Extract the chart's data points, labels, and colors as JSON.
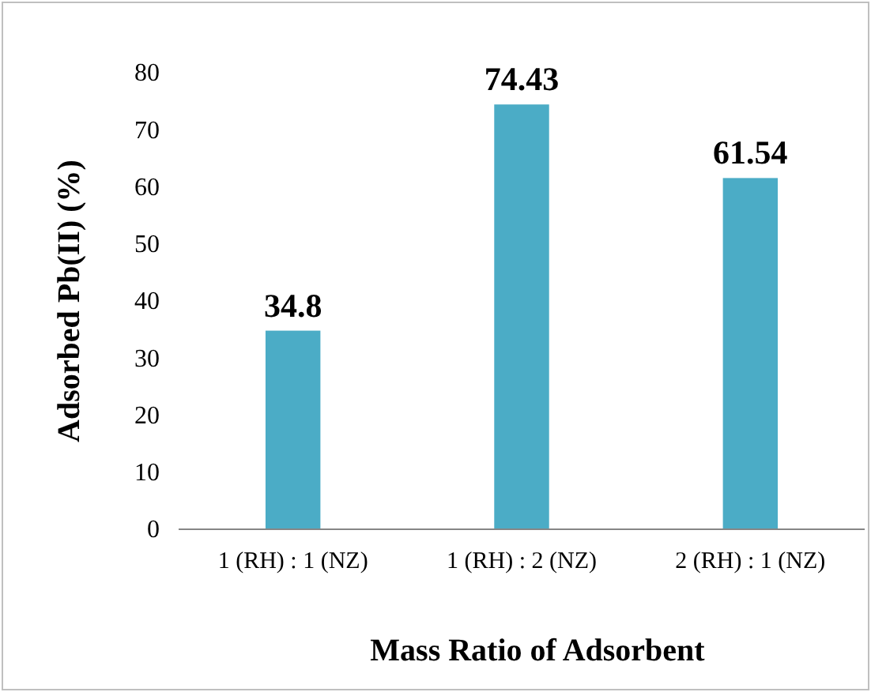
{
  "chart_data": {
    "type": "bar",
    "xlabel": "Mass Ratio of Adsorbent",
    "ylabel": "Adsorbed Pb(II) (%)",
    "categories": [
      "1 (RH) : 1 (NZ)",
      "1 (RH) : 2 (NZ)",
      "2 (RH) : 1 (NZ)"
    ],
    "values": [
      34.8,
      74.43,
      61.54
    ],
    "color": "#4bacc6",
    "ylim": [
      0,
      80
    ],
    "yticks": [
      0,
      10,
      20,
      30,
      40,
      50,
      60,
      70,
      80
    ],
    "data_labels": true,
    "grid": false
  }
}
